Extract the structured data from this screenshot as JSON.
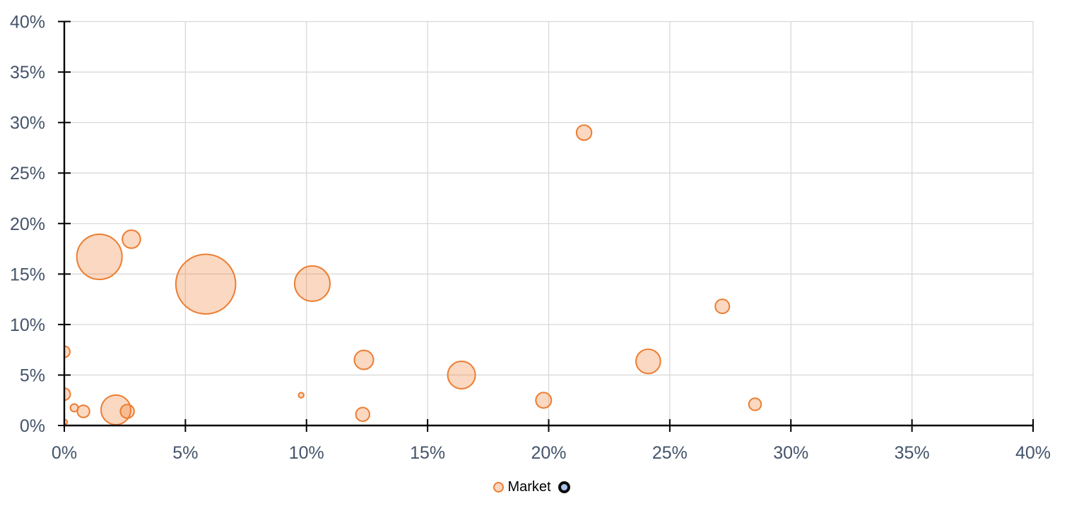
{
  "chart_data": {
    "type": "bubble",
    "title": "",
    "xlabel": "",
    "ylabel": "",
    "x_axis": {
      "min": 0,
      "max": 40,
      "tick_step": 5,
      "format": "percent",
      "tick_labels": [
        "0%",
        "5%",
        "10%",
        "15%",
        "20%",
        "25%",
        "30%",
        "35%",
        "40%"
      ]
    },
    "y_axis": {
      "min": 0,
      "max": 40,
      "tick_step": 5,
      "format": "percent",
      "tick_labels": [
        "0%",
        "5%",
        "10%",
        "15%",
        "20%",
        "25%",
        "30%",
        "35%",
        "40%"
      ]
    },
    "grid": true,
    "series": [
      {
        "name": "Market",
        "stroke": "#ED7D31",
        "fill": "rgba(237,125,49,0.3)",
        "points": [
          {
            "x": 0.0,
            "y": 7.3,
            "r": 8
          },
          {
            "x": 0.0,
            "y": 3.1,
            "r": 8.5
          },
          {
            "x": 0.03,
            "y": 0.35,
            "r": 3.3
          },
          {
            "x": 0.41,
            "y": 1.75,
            "r": 5.5
          },
          {
            "x": 0.79,
            "y": 1.4,
            "r": 8.7
          },
          {
            "x": 1.45,
            "y": 16.7,
            "r": 32
          },
          {
            "x": 2.13,
            "y": 1.55,
            "r": 21
          },
          {
            "x": 2.6,
            "y": 1.4,
            "r": 9.7
          },
          {
            "x": 2.77,
            "y": 18.45,
            "r": 12.8
          },
          {
            "x": 5.84,
            "y": 14.0,
            "r": 42.3
          },
          {
            "x": 9.78,
            "y": 3.0,
            "r": 3.7
          },
          {
            "x": 10.24,
            "y": 14.05,
            "r": 25
          },
          {
            "x": 12.32,
            "y": 1.1,
            "r": 9.7
          },
          {
            "x": 12.37,
            "y": 6.5,
            "r": 13.5
          },
          {
            "x": 16.4,
            "y": 5.0,
            "r": 19.5
          },
          {
            "x": 19.79,
            "y": 2.5,
            "r": 11
          },
          {
            "x": 21.46,
            "y": 29.0,
            "r": 10.7
          },
          {
            "x": 24.11,
            "y": 6.35,
            "r": 17.3
          },
          {
            "x": 27.17,
            "y": 11.8,
            "r": 10
          },
          {
            "x": 28.52,
            "y": 2.1,
            "r": 8.7
          }
        ]
      },
      {
        "name": "",
        "stroke": "#0D0D0D",
        "fill": "#AEC6ED",
        "points": []
      }
    ],
    "legend": {
      "position": "bottom",
      "items": [
        {
          "label": "Market"
        },
        {
          "label": ""
        }
      ]
    }
  },
  "colors": {
    "axis_line": "#000000",
    "gridline": "#D9D9D9",
    "tick_label": "#44546A",
    "legend_text": "#000000",
    "background": "#FFFFFF"
  }
}
